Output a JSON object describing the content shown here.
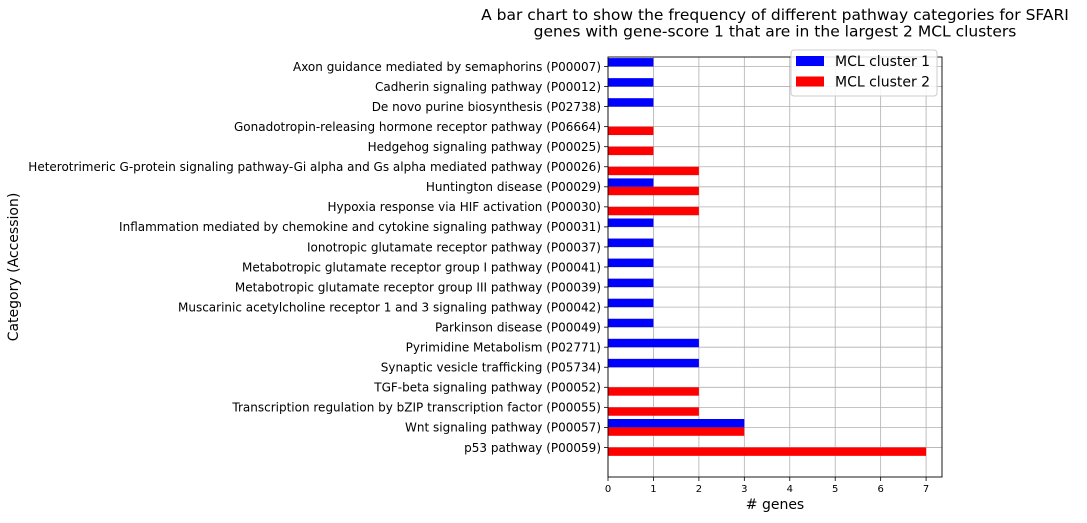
{
  "chart_data": {
    "type": "bar",
    "orientation": "horizontal",
    "title_lines": [
      "A bar chart to show the frequency of different pathway categories for SFARI",
      "genes with gene-score 1 that are in the largest 2 MCL clusters"
    ],
    "xlabel": "# genes",
    "ylabel": "Category (Accession)",
    "xlim": [
      0,
      7.35
    ],
    "xticks": [
      0,
      1,
      2,
      3,
      4,
      5,
      6,
      7
    ],
    "grid": true,
    "legend_position": "top-right",
    "categories": [
      "Axon guidance mediated by semaphorins (P00007)",
      "Cadherin signaling pathway (P00012)",
      "De novo purine biosynthesis (P02738)",
      "Gonadotropin-releasing hormone receptor pathway (P06664)",
      "Hedgehog signaling pathway (P00025)",
      "Heterotrimeric G-protein signaling pathway-Gi alpha and Gs alpha mediated pathway (P00026)",
      "Huntington disease (P00029)",
      "Hypoxia response via HIF activation (P00030)",
      "Inflammation mediated by chemokine and cytokine signaling pathway (P00031)",
      "Ionotropic glutamate receptor pathway (P00037)",
      "Metabotropic glutamate receptor group I pathway (P00041)",
      "Metabotropic glutamate receptor group III pathway (P00039)",
      "Muscarinic acetylcholine receptor 1 and 3 signaling pathway (P00042)",
      "Parkinson disease (P00049)",
      "Pyrimidine Metabolism (P02771)",
      "Synaptic vesicle trafficking (P05734)",
      "TGF-beta signaling pathway (P00052)",
      "Transcription regulation by bZIP transcription factor (P00055)",
      "Wnt signaling pathway (P00057)",
      "p53 pathway (P00059)"
    ],
    "series": [
      {
        "name": "MCL cluster 1",
        "color": "#0000ff",
        "values": [
          1,
          1,
          1,
          0,
          0,
          0,
          1,
          0,
          1,
          1,
          1,
          1,
          1,
          1,
          2,
          2,
          0,
          0,
          3,
          0
        ]
      },
      {
        "name": "MCL cluster 2",
        "color": "#ff0000",
        "values": [
          0,
          0,
          0,
          1,
          1,
          2,
          2,
          2,
          0,
          0,
          0,
          0,
          0,
          0,
          0,
          0,
          2,
          2,
          3,
          7
        ]
      }
    ]
  }
}
